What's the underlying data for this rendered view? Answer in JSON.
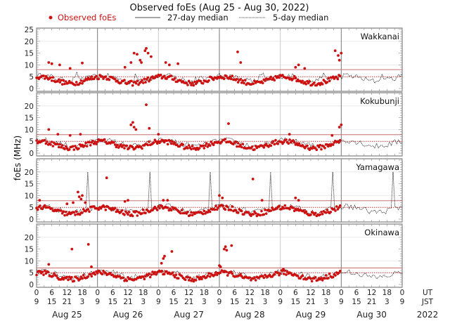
{
  "chart_data": {
    "type": "scatter",
    "title": "Observed foEs (Aug 25 - Aug 30, 2022)",
    "ylabel": "foEs (MHz)",
    "ylim": [
      0,
      25
    ],
    "y_ticks": [
      "0",
      "5",
      "10",
      "15",
      "20",
      "25"
    ],
    "y_ticks_lower": [
      "0",
      "5",
      "10",
      "15",
      "20"
    ],
    "x_ticks_ut": [
      "0",
      "6",
      "12",
      "18",
      "0",
      "6",
      "12",
      "18",
      "0",
      "6",
      "12",
      "18",
      "0",
      "6",
      "12",
      "18",
      "0",
      "6",
      "12",
      "18",
      "0",
      "6",
      "12",
      "18",
      "0"
    ],
    "x_ticks_jst": [
      "9",
      "15",
      "21",
      "3",
      "9",
      "15",
      "21",
      "3",
      "9",
      "15",
      "21",
      "3",
      "9",
      "15",
      "21",
      "3",
      "9",
      "15",
      "21",
      "3",
      "9",
      "15",
      "21",
      "3",
      "9"
    ],
    "ut_label": "UT",
    "jst_label": "JST",
    "days": [
      "Aug 25",
      "Aug 26",
      "Aug 27",
      "Aug 28",
      "Aug 29",
      "Aug 30"
    ],
    "year": "2022",
    "legend": {
      "observed": "Observed foEs",
      "median27": "27-day median",
      "median5": "5-day median"
    },
    "colors": {
      "observed": "#cc1111",
      "threshold": "#c87070",
      "median": "#111111"
    },
    "stations": [
      {
        "name": "Wakkanai",
        "upper_line": 8,
        "median_line": 5,
        "observed_days": 5,
        "outliers": [
          [
            0.2,
            11
          ],
          [
            0.25,
            10.5
          ],
          [
            0.38,
            10
          ],
          [
            0.55,
            8.5
          ],
          [
            0.75,
            10.8
          ],
          [
            1.45,
            9
          ],
          [
            1.55,
            11
          ],
          [
            1.6,
            15
          ],
          [
            1.65,
            14.5
          ],
          [
            1.7,
            12
          ],
          [
            1.72,
            11
          ],
          [
            1.78,
            16
          ],
          [
            1.8,
            17
          ],
          [
            1.83,
            15
          ],
          [
            1.88,
            13.5
          ],
          [
            2.12,
            11
          ],
          [
            2.18,
            10
          ],
          [
            2.32,
            10.5
          ],
          [
            3.3,
            15.5
          ],
          [
            3.35,
            11
          ],
          [
            4.25,
            9
          ],
          [
            4.3,
            10
          ],
          [
            4.4,
            8.5
          ],
          [
            4.9,
            16
          ],
          [
            4.95,
            14
          ],
          [
            4.97,
            12
          ],
          [
            5.0,
            15
          ]
        ],
        "spikes": []
      },
      {
        "name": "Kokubunji",
        "upper_line": 7.8,
        "median_line": 5,
        "observed_days": 5,
        "outliers": [
          [
            0.2,
            10
          ],
          [
            0.35,
            8
          ],
          [
            0.55,
            7.5
          ],
          [
            0.72,
            8
          ],
          [
            1.55,
            12
          ],
          [
            1.58,
            13
          ],
          [
            1.6,
            11
          ],
          [
            1.63,
            10
          ],
          [
            1.8,
            20.5
          ],
          [
            1.85,
            10.5
          ],
          [
            2.0,
            8
          ],
          [
            3.15,
            12.5
          ],
          [
            4.15,
            8
          ],
          [
            4.85,
            7.5
          ],
          [
            4.97,
            11
          ],
          [
            5.0,
            12
          ]
        ],
        "spikes": []
      },
      {
        "name": "Yamagawa",
        "upper_line": 7.8,
        "median_line": 5,
        "observed_days": 5,
        "outliers": [
          [
            0.05,
            8
          ],
          [
            0.5,
            6.5
          ],
          [
            0.6,
            7
          ],
          [
            0.68,
            11.5
          ],
          [
            0.7,
            9.5
          ],
          [
            0.73,
            8.5
          ],
          [
            0.75,
            10
          ],
          [
            0.8,
            7
          ],
          [
            1.15,
            17.5
          ],
          [
            1.45,
            7.5
          ],
          [
            1.5,
            8
          ],
          [
            2.08,
            8
          ],
          [
            2.15,
            8
          ],
          [
            3.0,
            10
          ],
          [
            3.05,
            9
          ],
          [
            3.55,
            17
          ],
          [
            3.7,
            8
          ],
          [
            4.25,
            9
          ],
          [
            4.3,
            8
          ]
        ],
        "spikes": [
          0.85,
          1.85,
          2.85,
          3.85,
          4.85,
          5.85
        ]
      },
      {
        "name": "Okinawa",
        "upper_line": 7,
        "median_line": 5,
        "observed_days": 5,
        "outliers": [
          [
            0.2,
            8.5
          ],
          [
            0.58,
            15
          ],
          [
            0.85,
            17
          ],
          [
            0.9,
            7.5
          ],
          [
            2.05,
            9
          ],
          [
            2.08,
            11
          ],
          [
            2.1,
            12
          ],
          [
            2.22,
            14
          ],
          [
            3.0,
            8
          ],
          [
            3.02,
            7.5
          ],
          [
            3.08,
            15
          ],
          [
            3.1,
            16
          ],
          [
            3.12,
            14.5
          ],
          [
            3.2,
            16.5
          ],
          [
            4.05,
            6.5
          ]
        ],
        "spikes": []
      }
    ]
  }
}
